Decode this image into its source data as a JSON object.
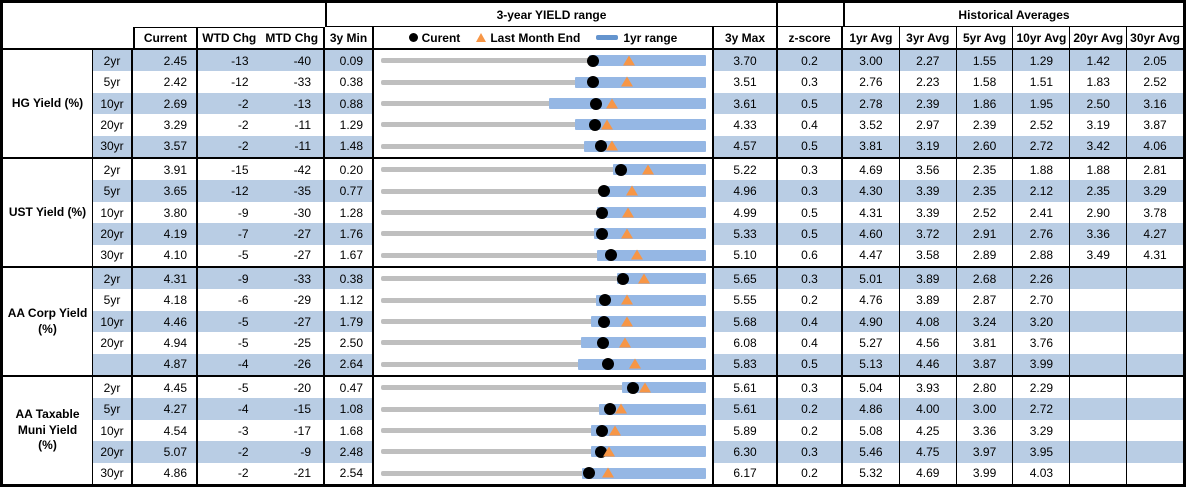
{
  "table": {
    "header": {
      "yield_range_title": "3-year YIELD range",
      "historical_title": "Historical Averages",
      "col_current": "Current",
      "col_wtd": "WTD Chg",
      "col_mtd": "MTD Chg",
      "col_min": "3y Min",
      "col_max": "3y Max",
      "col_z": "z-score",
      "avg_columns": [
        "1yr Avg",
        "3yr Avg",
        "5yr Avg",
        "10yr Avg",
        "20yr Avg",
        "30yr Avg"
      ],
      "legend": {
        "current": "Curent",
        "last_month_end": "Last Month End",
        "range_1yr": "1yr range"
      }
    },
    "groups": [
      {
        "label_lines": [
          "HG Yield (%)"
        ],
        "rows": [
          {
            "tenor": "2yr",
            "current": "2.45",
            "wtd": "-13",
            "mtd": "-40",
            "min": "0.09",
            "max": "3.70",
            "z": "0.2",
            "avgs": [
              "3.00",
              "2.27",
              "1.55",
              "1.29",
              "1.42",
              "2.05"
            ]
          },
          {
            "tenor": "5yr",
            "current": "2.42",
            "wtd": "-12",
            "mtd": "-33",
            "min": "0.38",
            "max": "3.51",
            "z": "0.3",
            "avgs": [
              "2.76",
              "2.23",
              "1.58",
              "1.51",
              "1.83",
              "2.52"
            ]
          },
          {
            "tenor": "10yr",
            "current": "2.69",
            "wtd": "-2",
            "mtd": "-13",
            "min": "0.88",
            "max": "3.61",
            "z": "0.5",
            "avgs": [
              "2.78",
              "2.39",
              "1.86",
              "1.95",
              "2.50",
              "3.16"
            ]
          },
          {
            "tenor": "20yr",
            "current": "3.29",
            "wtd": "-2",
            "mtd": "-11",
            "min": "1.29",
            "max": "4.33",
            "z": "0.4",
            "avgs": [
              "3.52",
              "2.97",
              "2.39",
              "2.52",
              "3.19",
              "3.87"
            ]
          },
          {
            "tenor": "30yr",
            "current": "3.57",
            "wtd": "-2",
            "mtd": "-11",
            "min": "1.48",
            "max": "4.57",
            "z": "0.5",
            "avgs": [
              "3.81",
              "3.19",
              "2.60",
              "2.72",
              "3.42",
              "4.06"
            ]
          }
        ]
      },
      {
        "label_lines": [
          "UST Yield (%)"
        ],
        "rows": [
          {
            "tenor": "2yr",
            "current": "3.91",
            "wtd": "-15",
            "mtd": "-42",
            "min": "0.20",
            "max": "5.22",
            "z": "0.3",
            "avgs": [
              "4.69",
              "3.56",
              "2.35",
              "1.88",
              "1.88",
              "2.81"
            ]
          },
          {
            "tenor": "5yr",
            "current": "3.65",
            "wtd": "-12",
            "mtd": "-35",
            "min": "0.77",
            "max": "4.96",
            "z": "0.3",
            "avgs": [
              "4.30",
              "3.39",
              "2.35",
              "2.12",
              "2.35",
              "3.29"
            ]
          },
          {
            "tenor": "10yr",
            "current": "3.80",
            "wtd": "-9",
            "mtd": "-30",
            "min": "1.28",
            "max": "4.99",
            "z": "0.5",
            "avgs": [
              "4.31",
              "3.39",
              "2.52",
              "2.41",
              "2.90",
              "3.78"
            ]
          },
          {
            "tenor": "20yr",
            "current": "4.19",
            "wtd": "-7",
            "mtd": "-27",
            "min": "1.76",
            "max": "5.33",
            "z": "0.5",
            "avgs": [
              "4.60",
              "3.72",
              "2.91",
              "2.76",
              "3.36",
              "4.27"
            ]
          },
          {
            "tenor": "30yr",
            "current": "4.10",
            "wtd": "-5",
            "mtd": "-27",
            "min": "1.67",
            "max": "5.10",
            "z": "0.6",
            "avgs": [
              "4.47",
              "3.58",
              "2.89",
              "2.88",
              "3.49",
              "4.31"
            ]
          }
        ]
      },
      {
        "label_lines": [
          "AA Corp Yield",
          "(%)"
        ],
        "rows": [
          {
            "tenor": "2yr",
            "current": "4.31",
            "wtd": "-9",
            "mtd": "-33",
            "min": "0.38",
            "max": "5.65",
            "z": "0.3",
            "avgs": [
              "5.01",
              "3.89",
              "2.68",
              "2.26",
              "",
              ""
            ]
          },
          {
            "tenor": "5yr",
            "current": "4.18",
            "wtd": "-6",
            "mtd": "-29",
            "min": "1.12",
            "max": "5.55",
            "z": "0.2",
            "avgs": [
              "4.76",
              "3.89",
              "2.87",
              "2.70",
              "",
              ""
            ]
          },
          {
            "tenor": "10yr",
            "current": "4.46",
            "wtd": "-5",
            "mtd": "-27",
            "min": "1.79",
            "max": "5.68",
            "z": "0.4",
            "avgs": [
              "4.90",
              "4.08",
              "3.24",
              "3.20",
              "",
              ""
            ]
          },
          {
            "tenor": "20yr",
            "current": "4.94",
            "wtd": "-5",
            "mtd": "-25",
            "min": "2.50",
            "max": "6.08",
            "z": "0.4",
            "avgs": [
              "5.27",
              "4.56",
              "3.81",
              "3.76",
              "",
              ""
            ]
          },
          {
            "tenor": "",
            "current": "4.87",
            "wtd": "-4",
            "mtd": "-26",
            "min": "2.64",
            "max": "5.83",
            "z": "0.5",
            "avgs": [
              "5.13",
              "4.46",
              "3.87",
              "3.99",
              "",
              ""
            ]
          }
        ]
      },
      {
        "label_lines": [
          "AA Taxable",
          "Muni Yield",
          "(%)"
        ],
        "rows": [
          {
            "tenor": "2yr",
            "current": "4.45",
            "wtd": "-5",
            "mtd": "-20",
            "min": "0.47",
            "max": "5.61",
            "z": "0.3",
            "avgs": [
              "5.04",
              "3.93",
              "2.80",
              "2.29",
              "",
              ""
            ]
          },
          {
            "tenor": "5yr",
            "current": "4.27",
            "wtd": "-4",
            "mtd": "-15",
            "min": "1.08",
            "max": "5.61",
            "z": "0.2",
            "avgs": [
              "4.86",
              "4.00",
              "3.00",
              "2.72",
              "",
              ""
            ]
          },
          {
            "tenor": "10yr",
            "current": "4.54",
            "wtd": "-3",
            "mtd": "-17",
            "min": "1.68",
            "max": "5.89",
            "z": "0.2",
            "avgs": [
              "5.08",
              "4.25",
              "3.36",
              "3.29",
              "",
              ""
            ]
          },
          {
            "tenor": "20yr",
            "current": "5.07",
            "wtd": "-2",
            "mtd": "-9",
            "min": "2.48",
            "max": "6.30",
            "z": "0.3",
            "avgs": [
              "5.46",
              "4.75",
              "3.97",
              "3.95",
              "",
              ""
            ]
          },
          {
            "tenor": "30yr",
            "current": "4.86",
            "wtd": "-2",
            "mtd": "-21",
            "min": "2.54",
            "max": "6.17",
            "z": "0.2",
            "avgs": [
              "5.32",
              "4.69",
              "3.99",
              "4.03",
              "",
              ""
            ]
          }
        ]
      }
    ]
  },
  "chart_data": {
    "type": "range_bar",
    "title": "3-year YIELD range",
    "legend": [
      "Curent",
      "Last Month End",
      "1yr range"
    ],
    "axis": "each row scaled from its 3y Min to its 3y Max (yield %)",
    "rows": [
      {
        "group": "HG Yield (%)",
        "tenor": "2yr",
        "min_3y": 0.09,
        "max_3y": 3.7,
        "current": 2.45,
        "last_month_end": 2.85,
        "range_1yr": [
          2.4,
          3.7
        ]
      },
      {
        "group": "HG Yield (%)",
        "tenor": "5yr",
        "min_3y": 0.38,
        "max_3y": 3.51,
        "current": 2.42,
        "last_month_end": 2.75,
        "range_1yr": [
          2.25,
          3.51
        ]
      },
      {
        "group": "HG Yield (%)",
        "tenor": "10yr",
        "min_3y": 0.88,
        "max_3y": 3.61,
        "current": 2.69,
        "last_month_end": 2.82,
        "range_1yr": [
          2.29,
          3.61
        ]
      },
      {
        "group": "HG Yield (%)",
        "tenor": "20yr",
        "min_3y": 1.29,
        "max_3y": 4.33,
        "current": 3.29,
        "last_month_end": 3.4,
        "range_1yr": [
          3.1,
          4.33
        ]
      },
      {
        "group": "HG Yield (%)",
        "tenor": "30yr",
        "min_3y": 1.48,
        "max_3y": 4.57,
        "current": 3.57,
        "last_month_end": 3.68,
        "range_1yr": [
          3.41,
          4.57
        ]
      },
      {
        "group": "UST Yield (%)",
        "tenor": "2yr",
        "min_3y": 0.2,
        "max_3y": 5.22,
        "current": 3.91,
        "last_month_end": 4.33,
        "range_1yr": [
          3.78,
          5.22
        ]
      },
      {
        "group": "UST Yield (%)",
        "tenor": "5yr",
        "min_3y": 0.77,
        "max_3y": 4.96,
        "current": 3.65,
        "last_month_end": 4.0,
        "range_1yr": [
          3.6,
          4.96
        ]
      },
      {
        "group": "UST Yield (%)",
        "tenor": "10yr",
        "min_3y": 1.28,
        "max_3y": 4.99,
        "current": 3.8,
        "last_month_end": 4.1,
        "range_1yr": [
          3.75,
          4.99
        ]
      },
      {
        "group": "UST Yield (%)",
        "tenor": "20yr",
        "min_3y": 1.76,
        "max_3y": 5.33,
        "current": 4.19,
        "last_month_end": 4.46,
        "range_1yr": [
          4.1,
          5.33
        ]
      },
      {
        "group": "UST Yield (%)",
        "tenor": "30yr",
        "min_3y": 1.67,
        "max_3y": 5.1,
        "current": 4.1,
        "last_month_end": 4.37,
        "range_1yr": [
          3.95,
          5.1
        ]
      },
      {
        "group": "AA Corp Yield (%)",
        "tenor": "2yr",
        "min_3y": 0.38,
        "max_3y": 5.65,
        "current": 4.31,
        "last_month_end": 4.64,
        "range_1yr": [
          4.2,
          5.65
        ]
      },
      {
        "group": "AA Corp Yield (%)",
        "tenor": "5yr",
        "min_3y": 1.12,
        "max_3y": 5.55,
        "current": 4.18,
        "last_month_end": 4.47,
        "range_1yr": [
          4.05,
          5.55
        ]
      },
      {
        "group": "AA Corp Yield (%)",
        "tenor": "10yr",
        "min_3y": 1.79,
        "max_3y": 5.68,
        "current": 4.46,
        "last_month_end": 4.73,
        "range_1yr": [
          4.3,
          5.68
        ]
      },
      {
        "group": "AA Corp Yield (%)",
        "tenor": "20yr",
        "min_3y": 2.5,
        "max_3y": 6.08,
        "current": 4.94,
        "last_month_end": 5.19,
        "range_1yr": [
          4.7,
          6.08
        ]
      },
      {
        "group": "AA Corp Yield (%)",
        "tenor": "30yr",
        "min_3y": 2.64,
        "max_3y": 5.83,
        "current": 4.87,
        "last_month_end": 5.13,
        "range_1yr": [
          4.57,
          5.83
        ]
      },
      {
        "group": "AA Taxable Muni Yield (%)",
        "tenor": "2yr",
        "min_3y": 0.47,
        "max_3y": 5.61,
        "current": 4.45,
        "last_month_end": 4.65,
        "range_1yr": [
          4.28,
          5.61
        ]
      },
      {
        "group": "AA Taxable Muni Yield (%)",
        "tenor": "5yr",
        "min_3y": 1.08,
        "max_3y": 5.61,
        "current": 4.27,
        "last_month_end": 4.42,
        "range_1yr": [
          4.12,
          5.61
        ]
      },
      {
        "group": "AA Taxable Muni Yield (%)",
        "tenor": "10yr",
        "min_3y": 1.68,
        "max_3y": 5.89,
        "current": 4.54,
        "last_month_end": 4.71,
        "range_1yr": [
          4.4,
          5.89
        ]
      },
      {
        "group": "AA Taxable Muni Yield (%)",
        "tenor": "20yr",
        "min_3y": 2.48,
        "max_3y": 6.3,
        "current": 5.07,
        "last_month_end": 5.16,
        "range_1yr": [
          4.95,
          6.3
        ]
      },
      {
        "group": "AA Taxable Muni Yield (%)",
        "tenor": "30yr",
        "min_3y": 2.54,
        "max_3y": 6.17,
        "current": 4.86,
        "last_month_end": 5.07,
        "range_1yr": [
          4.78,
          6.17
        ]
      }
    ]
  },
  "colors": {
    "row_stripe": "#b9cde4",
    "bar_1yr": "#95b7e4",
    "track_3y": "#bfbfbf",
    "marker_current": "#000000",
    "marker_last_month_end": "#f79646",
    "legend_bar": "#6494ce",
    "border": "#000000"
  }
}
